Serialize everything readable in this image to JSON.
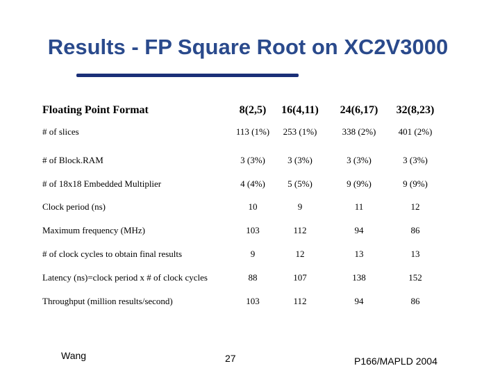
{
  "title": "Results - FP Square Root on XC2V3000",
  "table": {
    "header": [
      "Floating Point Format",
      "8(2,5)",
      "16(4,11)",
      "24(6,17)",
      "32(8,23)"
    ],
    "rows": [
      [
        "# of slices",
        "113 (1%)",
        "253 (1%)",
        "338 (2%)",
        "401 (2%)"
      ],
      [
        "# of Block.RAM",
        "3 (3%)",
        "3 (3%)",
        "3 (3%)",
        "3 (3%)"
      ],
      [
        "# of 18x18 Embedded Multiplier",
        "4 (4%)",
        "5 (5%)",
        "9 (9%)",
        "9 (9%)"
      ],
      [
        "Clock period (ns)",
        "10",
        "9",
        "11",
        "12"
      ],
      [
        "Maximum frequency (MHz)",
        "103",
        "112",
        "94",
        "86"
      ],
      [
        "# of clock cycles to obtain final results",
        "9",
        "12",
        "13",
        "13"
      ],
      [
        "Latency (ns)=clock period x # of clock cycles",
        "88",
        "107",
        "138",
        "152"
      ],
      [
        "Throughput (million results/second)",
        "103",
        "112",
        "94",
        "86"
      ]
    ]
  },
  "footer": {
    "author": "Wang",
    "page": "27",
    "venue": "P166/MAPLD 2004"
  }
}
